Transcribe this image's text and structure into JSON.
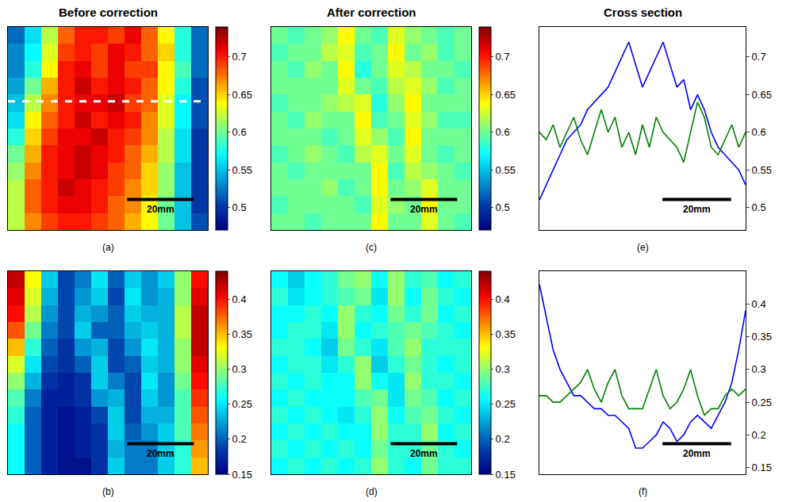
{
  "chart_data": [
    {
      "type": "heatmap",
      "title": "Before correction",
      "panel": "(a)",
      "x": [
        2.5,
        7.5,
        12.5,
        17.5,
        22.5,
        27.5,
        32.5,
        37.5,
        42.5,
        47.5,
        52.5,
        57.5
      ],
      "y": [
        57.5,
        52.5,
        47.5,
        42.5,
        37.5,
        32.5,
        27.5,
        22.5,
        17.5,
        12.5,
        7.5,
        2.5
      ],
      "z": [
        [
          0.52,
          0.56,
          0.62,
          0.68,
          0.7,
          0.7,
          0.69,
          0.71,
          0.68,
          0.64,
          0.58,
          0.52
        ],
        [
          0.53,
          0.57,
          0.63,
          0.69,
          0.7,
          0.69,
          0.71,
          0.7,
          0.68,
          0.65,
          0.58,
          0.52
        ],
        [
          0.53,
          0.58,
          0.64,
          0.7,
          0.71,
          0.69,
          0.71,
          0.69,
          0.69,
          0.64,
          0.59,
          0.52
        ],
        [
          0.54,
          0.6,
          0.66,
          0.7,
          0.72,
          0.7,
          0.71,
          0.7,
          0.68,
          0.64,
          0.58,
          0.51
        ],
        [
          0.55,
          0.62,
          0.67,
          0.7,
          0.71,
          0.71,
          0.72,
          0.69,
          0.68,
          0.63,
          0.57,
          0.51
        ],
        [
          0.56,
          0.64,
          0.68,
          0.7,
          0.72,
          0.7,
          0.71,
          0.7,
          0.67,
          0.63,
          0.57,
          0.51
        ],
        [
          0.58,
          0.65,
          0.69,
          0.71,
          0.71,
          0.72,
          0.7,
          0.69,
          0.67,
          0.62,
          0.56,
          0.5
        ],
        [
          0.6,
          0.66,
          0.7,
          0.71,
          0.72,
          0.71,
          0.7,
          0.68,
          0.66,
          0.62,
          0.56,
          0.5
        ],
        [
          0.61,
          0.67,
          0.7,
          0.71,
          0.72,
          0.71,
          0.69,
          0.68,
          0.65,
          0.61,
          0.55,
          0.5
        ],
        [
          0.62,
          0.68,
          0.7,
          0.72,
          0.71,
          0.7,
          0.69,
          0.67,
          0.65,
          0.61,
          0.55,
          0.5
        ],
        [
          0.62,
          0.68,
          0.7,
          0.71,
          0.71,
          0.7,
          0.68,
          0.67,
          0.64,
          0.6,
          0.55,
          0.5
        ],
        [
          0.62,
          0.67,
          0.69,
          0.7,
          0.7,
          0.69,
          0.68,
          0.66,
          0.64,
          0.6,
          0.55,
          0.51
        ]
      ],
      "xlim": [
        0,
        60
      ],
      "ylim": [
        0,
        60
      ],
      "tick_labels": false,
      "colorbar": {
        "range": [
          0.47,
          0.74
        ],
        "ticks": [
          0.5,
          0.55,
          0.6,
          0.65,
          0.7
        ]
      },
      "cross_section_y": 38,
      "scale_bar": {
        "length": 20,
        "label": "20mm"
      }
    },
    {
      "type": "heatmap",
      "panel": "(b)",
      "x": [
        2.5,
        7.5,
        12.5,
        17.5,
        22.5,
        27.5,
        32.5,
        37.5,
        42.5,
        47.5,
        52.5,
        57.5
      ],
      "y": [
        57.5,
        52.5,
        47.5,
        42.5,
        37.5,
        32.5,
        27.5,
        22.5,
        17.5,
        12.5,
        7.5,
        2.5
      ],
      "z": [
        [
          0.42,
          0.33,
          0.24,
          0.19,
          0.21,
          0.25,
          0.2,
          0.24,
          0.22,
          0.24,
          0.3,
          0.4
        ],
        [
          0.41,
          0.32,
          0.23,
          0.19,
          0.22,
          0.24,
          0.19,
          0.25,
          0.22,
          0.23,
          0.3,
          0.41
        ],
        [
          0.4,
          0.31,
          0.22,
          0.19,
          0.23,
          0.22,
          0.2,
          0.24,
          0.23,
          0.23,
          0.31,
          0.42
        ],
        [
          0.38,
          0.29,
          0.21,
          0.19,
          0.24,
          0.2,
          0.2,
          0.23,
          0.24,
          0.23,
          0.31,
          0.42
        ],
        [
          0.35,
          0.27,
          0.2,
          0.18,
          0.22,
          0.23,
          0.19,
          0.22,
          0.25,
          0.23,
          0.3,
          0.42
        ],
        [
          0.32,
          0.25,
          0.19,
          0.18,
          0.2,
          0.24,
          0.19,
          0.2,
          0.24,
          0.23,
          0.3,
          0.41
        ],
        [
          0.3,
          0.23,
          0.18,
          0.17,
          0.18,
          0.24,
          0.21,
          0.19,
          0.25,
          0.22,
          0.29,
          0.4
        ],
        [
          0.28,
          0.21,
          0.17,
          0.17,
          0.18,
          0.22,
          0.23,
          0.19,
          0.24,
          0.22,
          0.28,
          0.39
        ],
        [
          0.27,
          0.2,
          0.17,
          0.16,
          0.17,
          0.19,
          0.24,
          0.19,
          0.23,
          0.23,
          0.28,
          0.38
        ],
        [
          0.26,
          0.2,
          0.17,
          0.16,
          0.17,
          0.18,
          0.24,
          0.2,
          0.22,
          0.24,
          0.28,
          0.37
        ],
        [
          0.26,
          0.2,
          0.17,
          0.16,
          0.17,
          0.18,
          0.23,
          0.21,
          0.21,
          0.24,
          0.27,
          0.36
        ],
        [
          0.26,
          0.2,
          0.17,
          0.16,
          0.16,
          0.18,
          0.24,
          0.21,
          0.21,
          0.24,
          0.27,
          0.35
        ]
      ],
      "xlim": [
        0,
        60
      ],
      "ylim": [
        0,
        60
      ],
      "tick_labels": false,
      "colorbar": {
        "range": [
          0.15,
          0.44
        ],
        "ticks": [
          0.15,
          0.2,
          0.25,
          0.3,
          0.35,
          0.4
        ]
      },
      "scale_bar": {
        "length": 20,
        "label": "20mm"
      }
    },
    {
      "type": "heatmap",
      "title": "After correction",
      "panel": "(c)",
      "x": [
        2.5,
        7.5,
        12.5,
        17.5,
        22.5,
        27.5,
        32.5,
        37.5,
        42.5,
        47.5,
        52.5,
        57.5
      ],
      "y": [
        57.5,
        52.5,
        47.5,
        42.5,
        37.5,
        32.5,
        27.5,
        22.5,
        17.5,
        12.5,
        7.5,
        2.5
      ],
      "z": [
        [
          0.6,
          0.59,
          0.6,
          0.61,
          0.64,
          0.6,
          0.59,
          0.63,
          0.61,
          0.6,
          0.59,
          0.6
        ],
        [
          0.59,
          0.6,
          0.6,
          0.62,
          0.63,
          0.59,
          0.6,
          0.64,
          0.6,
          0.61,
          0.59,
          0.6
        ],
        [
          0.6,
          0.59,
          0.61,
          0.6,
          0.64,
          0.58,
          0.6,
          0.63,
          0.62,
          0.6,
          0.6,
          0.59
        ],
        [
          0.6,
          0.6,
          0.6,
          0.6,
          0.63,
          0.6,
          0.59,
          0.62,
          0.63,
          0.61,
          0.59,
          0.6
        ],
        [
          0.59,
          0.6,
          0.6,
          0.61,
          0.62,
          0.63,
          0.58,
          0.61,
          0.64,
          0.6,
          0.6,
          0.6
        ],
        [
          0.6,
          0.59,
          0.61,
          0.6,
          0.6,
          0.64,
          0.59,
          0.6,
          0.63,
          0.61,
          0.59,
          0.59
        ],
        [
          0.6,
          0.6,
          0.6,
          0.59,
          0.6,
          0.63,
          0.61,
          0.59,
          0.64,
          0.6,
          0.6,
          0.6
        ],
        [
          0.59,
          0.6,
          0.61,
          0.6,
          0.59,
          0.62,
          0.63,
          0.6,
          0.63,
          0.6,
          0.59,
          0.6
        ],
        [
          0.6,
          0.59,
          0.6,
          0.6,
          0.6,
          0.6,
          0.64,
          0.59,
          0.62,
          0.61,
          0.6,
          0.59
        ],
        [
          0.6,
          0.6,
          0.6,
          0.61,
          0.59,
          0.6,
          0.64,
          0.6,
          0.61,
          0.63,
          0.6,
          0.6
        ],
        [
          0.59,
          0.6,
          0.6,
          0.6,
          0.6,
          0.59,
          0.63,
          0.61,
          0.6,
          0.64,
          0.6,
          0.6
        ],
        [
          0.6,
          0.6,
          0.59,
          0.6,
          0.6,
          0.6,
          0.64,
          0.6,
          0.6,
          0.63,
          0.6,
          0.59
        ]
      ],
      "xlim": [
        0,
        60
      ],
      "ylim": [
        0,
        60
      ],
      "tick_labels": false,
      "colorbar": {
        "range": [
          0.47,
          0.74
        ],
        "ticks": [
          0.5,
          0.55,
          0.6,
          0.65,
          0.7
        ]
      },
      "scale_bar": {
        "length": 20,
        "label": "20mm"
      }
    },
    {
      "type": "heatmap",
      "panel": "(d)",
      "x": [
        2.5,
        7.5,
        12.5,
        17.5,
        22.5,
        27.5,
        32.5,
        37.5,
        42.5,
        47.5,
        52.5,
        57.5
      ],
      "y": [
        57.5,
        52.5,
        47.5,
        42.5,
        37.5,
        32.5,
        27.5,
        22.5,
        17.5,
        12.5,
        7.5,
        2.5
      ],
      "z": [
        [
          0.26,
          0.24,
          0.26,
          0.27,
          0.29,
          0.3,
          0.26,
          0.3,
          0.27,
          0.28,
          0.26,
          0.27
        ],
        [
          0.27,
          0.25,
          0.26,
          0.27,
          0.28,
          0.29,
          0.25,
          0.3,
          0.26,
          0.29,
          0.27,
          0.26
        ],
        [
          0.26,
          0.26,
          0.27,
          0.26,
          0.3,
          0.27,
          0.26,
          0.29,
          0.27,
          0.29,
          0.26,
          0.27
        ],
        [
          0.26,
          0.27,
          0.27,
          0.25,
          0.3,
          0.26,
          0.27,
          0.28,
          0.29,
          0.28,
          0.27,
          0.26
        ],
        [
          0.27,
          0.27,
          0.26,
          0.24,
          0.29,
          0.27,
          0.25,
          0.28,
          0.3,
          0.27,
          0.27,
          0.27
        ],
        [
          0.26,
          0.27,
          0.27,
          0.25,
          0.27,
          0.3,
          0.24,
          0.27,
          0.29,
          0.27,
          0.26,
          0.27
        ],
        [
          0.27,
          0.26,
          0.27,
          0.26,
          0.26,
          0.3,
          0.26,
          0.25,
          0.3,
          0.27,
          0.27,
          0.26
        ],
        [
          0.26,
          0.27,
          0.26,
          0.26,
          0.26,
          0.28,
          0.29,
          0.25,
          0.29,
          0.28,
          0.26,
          0.27
        ],
        [
          0.27,
          0.26,
          0.27,
          0.26,
          0.25,
          0.27,
          0.3,
          0.26,
          0.28,
          0.29,
          0.27,
          0.26
        ],
        [
          0.26,
          0.27,
          0.26,
          0.27,
          0.26,
          0.26,
          0.3,
          0.27,
          0.27,
          0.3,
          0.26,
          0.27
        ],
        [
          0.27,
          0.26,
          0.27,
          0.26,
          0.27,
          0.26,
          0.29,
          0.27,
          0.27,
          0.29,
          0.27,
          0.26
        ],
        [
          0.26,
          0.27,
          0.26,
          0.27,
          0.26,
          0.27,
          0.3,
          0.27,
          0.26,
          0.29,
          0.27,
          0.27
        ]
      ],
      "xlim": [
        0,
        60
      ],
      "ylim": [
        0,
        60
      ],
      "tick_labels": false,
      "colorbar": {
        "range": [
          0.15,
          0.44
        ],
        "ticks": [
          0.15,
          0.2,
          0.25,
          0.3,
          0.35,
          0.4
        ]
      },
      "scale_bar": {
        "length": 20,
        "label": "20mm"
      }
    },
    {
      "type": "line",
      "title": "Cross section",
      "panel": "(e)",
      "x": [
        0,
        2,
        4,
        6,
        8,
        10,
        12,
        14,
        16,
        18,
        20,
        22,
        24,
        26,
        28,
        30,
        32,
        34,
        36,
        38,
        40,
        42,
        44,
        46,
        48,
        50,
        52,
        54,
        56,
        58,
        60
      ],
      "series": [
        {
          "color": "#0000ff",
          "values": [
            0.51,
            0.53,
            0.55,
            0.57,
            0.59,
            0.6,
            0.61,
            0.63,
            0.64,
            0.65,
            0.66,
            0.68,
            0.7,
            0.72,
            0.69,
            0.66,
            0.68,
            0.7,
            0.72,
            0.69,
            0.66,
            0.67,
            0.63,
            0.65,
            0.63,
            0.6,
            0.58,
            0.57,
            0.56,
            0.55,
            0.53
          ]
        },
        {
          "color": "#008000",
          "values": [
            0.6,
            0.59,
            0.61,
            0.58,
            0.6,
            0.62,
            0.59,
            0.57,
            0.6,
            0.63,
            0.6,
            0.62,
            0.58,
            0.6,
            0.57,
            0.61,
            0.58,
            0.62,
            0.6,
            0.59,
            0.58,
            0.56,
            0.6,
            0.64,
            0.62,
            0.58,
            0.57,
            0.59,
            0.61,
            0.58,
            0.6
          ]
        }
      ],
      "xlim": [
        0,
        60
      ],
      "ylim": [
        0.47,
        0.74
      ],
      "yticks": [
        0.5,
        0.55,
        0.6,
        0.65,
        0.7
      ],
      "tick_labels": "y",
      "scale_bar": {
        "length": 20,
        "label": "20mm"
      }
    },
    {
      "type": "line",
      "panel": "(f)",
      "x": [
        0,
        2,
        4,
        6,
        8,
        10,
        12,
        14,
        16,
        18,
        20,
        22,
        24,
        26,
        28,
        30,
        32,
        34,
        36,
        38,
        40,
        42,
        44,
        46,
        48,
        50,
        52,
        54,
        56,
        58,
        60
      ],
      "series": [
        {
          "color": "#0000ff",
          "values": [
            0.43,
            0.38,
            0.33,
            0.3,
            0.28,
            0.26,
            0.26,
            0.25,
            0.24,
            0.24,
            0.23,
            0.23,
            0.22,
            0.21,
            0.18,
            0.18,
            0.19,
            0.2,
            0.22,
            0.21,
            0.19,
            0.2,
            0.22,
            0.23,
            0.22,
            0.21,
            0.23,
            0.25,
            0.28,
            0.33,
            0.39
          ]
        },
        {
          "color": "#008000",
          "values": [
            0.26,
            0.26,
            0.25,
            0.25,
            0.26,
            0.27,
            0.28,
            0.3,
            0.27,
            0.25,
            0.28,
            0.3,
            0.26,
            0.24,
            0.24,
            0.24,
            0.27,
            0.3,
            0.26,
            0.24,
            0.25,
            0.27,
            0.3,
            0.26,
            0.23,
            0.24,
            0.24,
            0.26,
            0.27,
            0.26,
            0.27
          ]
        }
      ],
      "xlim": [
        0,
        60
      ],
      "ylim": [
        0.14,
        0.45
      ],
      "yticks": [
        0.15,
        0.2,
        0.25,
        0.3,
        0.35,
        0.4
      ],
      "tick_labels": "y",
      "scale_bar": {
        "length": 20,
        "label": "20mm"
      }
    }
  ]
}
